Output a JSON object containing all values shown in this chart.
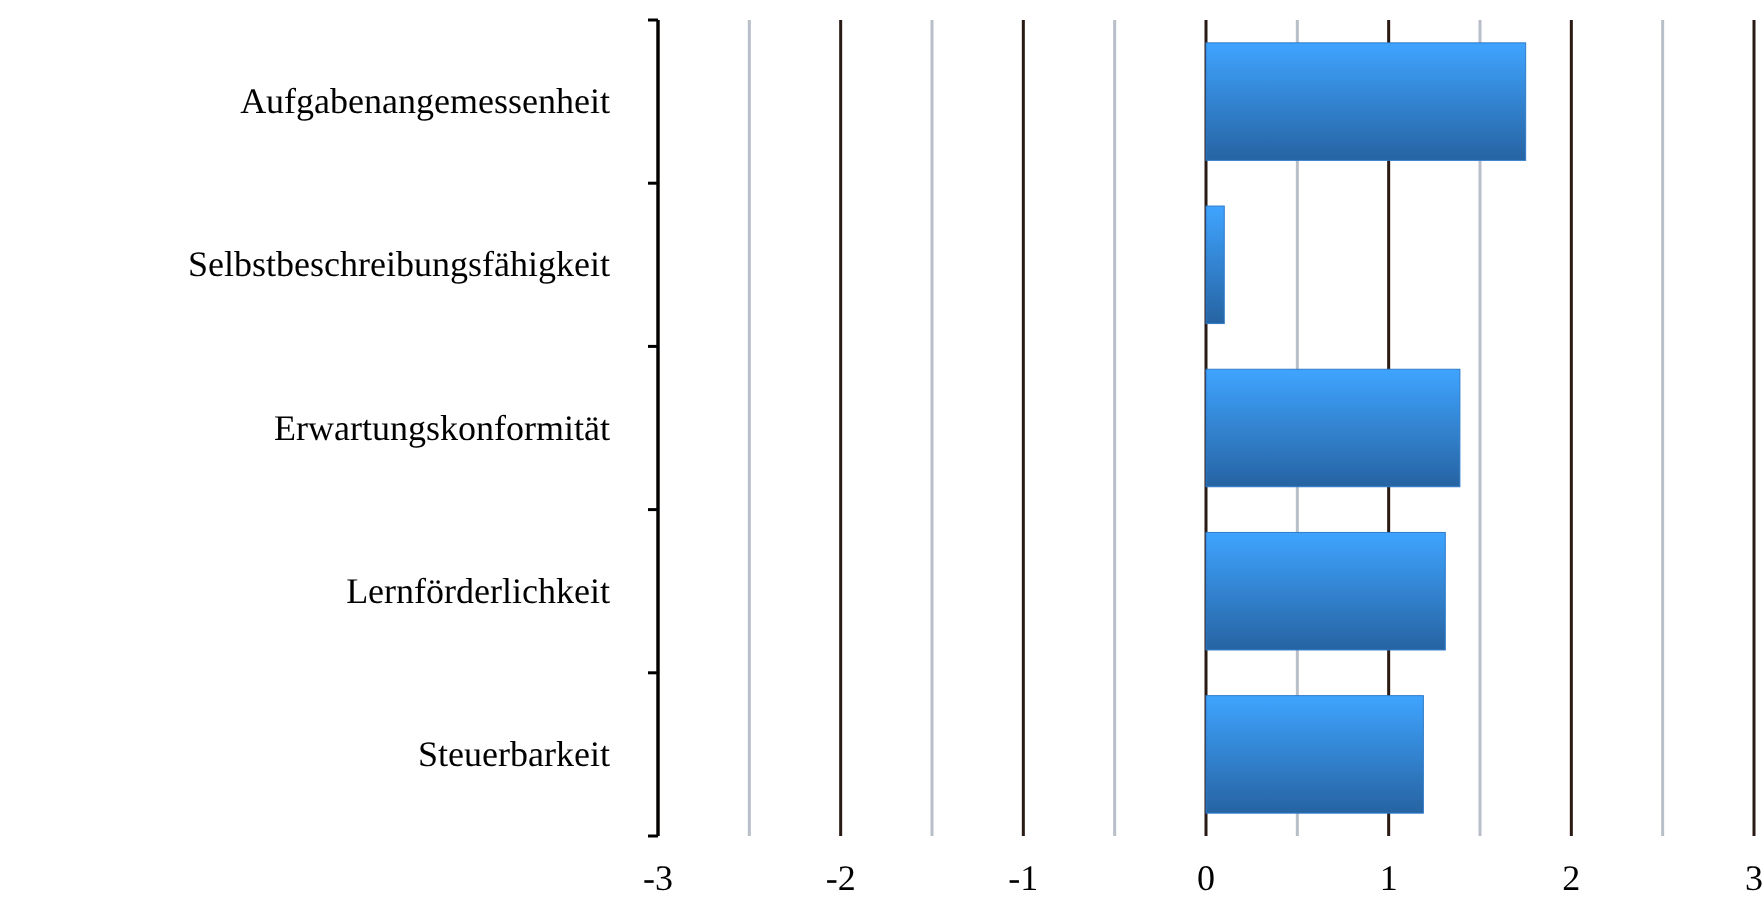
{
  "chart_data": {
    "type": "bar",
    "orientation": "horizontal",
    "categories": [
      "Aufgabenangemessenheit",
      "Selbstbeschreibungsfähigkeit",
      "Erwartungskonformität",
      "Lernförderlichkeit",
      "Steuerbarkeit"
    ],
    "values": [
      1.75,
      0.1,
      1.39,
      1.31,
      1.19
    ],
    "color": "#2f7bc9",
    "xlim": [
      -3,
      3
    ],
    "xticks": [
      -3,
      {
        "value": -2.5,
        "label": null
      },
      -2,
      {
        "value": -1.5,
        "label": null
      },
      -1,
      {
        "value": -0.5,
        "label": null
      },
      0,
      {
        "value": 0.5,
        "label": null
      },
      1,
      {
        "value": 1.5,
        "label": null
      },
      2,
      {
        "value": 2.5,
        "label": null
      },
      3
    ],
    "grid": "x"
  }
}
